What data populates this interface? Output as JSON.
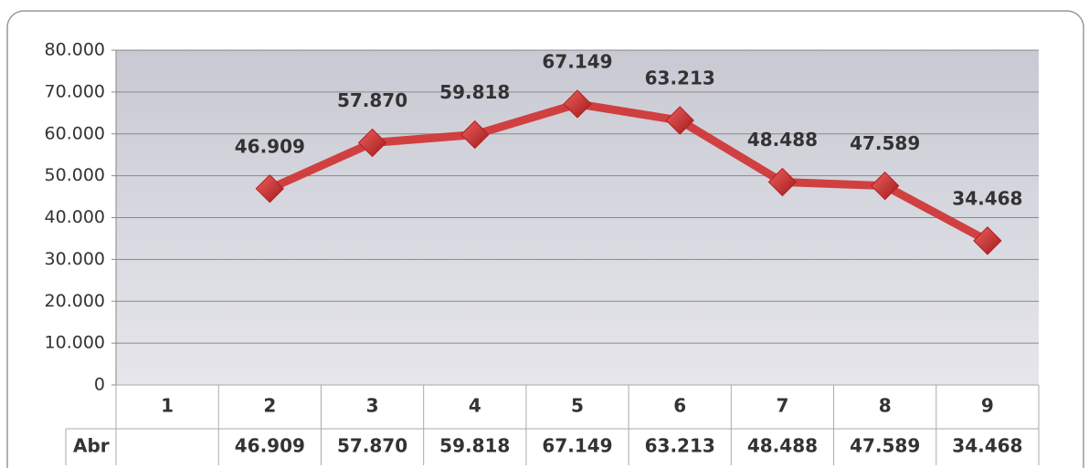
{
  "chart_data": {
    "type": "line",
    "categories": [
      "1",
      "2",
      "3",
      "4",
      "5",
      "6",
      "7",
      "8",
      "9"
    ],
    "series": [
      {
        "name": "Abr",
        "color": "#d03030",
        "values": [
          null,
          46909,
          57870,
          59818,
          67149,
          63213,
          48488,
          47589,
          34468
        ],
        "value_labels": [
          null,
          "46.909",
          "57.870",
          "59.818",
          "67.149",
          "63.213",
          "48.488",
          "47.589",
          "34.468"
        ]
      }
    ],
    "ylim": [
      0,
      80000
    ],
    "yticks": [
      0,
      {
        "value": 10000,
        "label": "10.000"
      },
      {
        "value": 20000,
        "label": "20.000"
      },
      {
        "value": 30000,
        "label": "30.000"
      },
      {
        "value": 40000,
        "label": "40.000"
      },
      {
        "value": 50000,
        "label": "50.000"
      },
      {
        "value": 60000,
        "label": "60.000"
      },
      {
        "value": 70000,
        "label": "70.000"
      },
      {
        "value": 80000,
        "label": "80.000"
      }
    ],
    "grid": true,
    "data_table": true
  }
}
